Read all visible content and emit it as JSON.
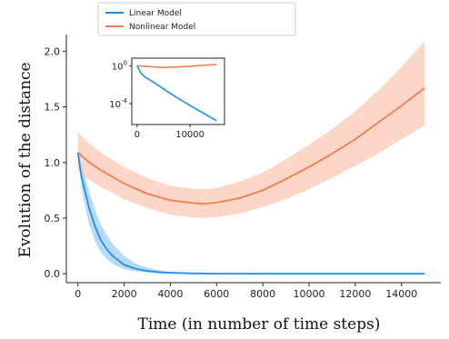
{
  "chart_data": {
    "type": "line",
    "xlabel": "Time (in number of time steps)",
    "ylabel": "Evolution of the distance",
    "xlim": [
      -500,
      15700
    ],
    "ylim": [
      -0.08,
      2.15
    ],
    "xticks": [
      "0",
      "2000",
      "4000",
      "6000",
      "8000",
      "10000",
      "12000",
      "14000"
    ],
    "xtick_values": [
      0,
      2000,
      4000,
      6000,
      8000,
      10000,
      12000,
      14000
    ],
    "yticks": [
      "0.0",
      "0.5",
      "1.0",
      "1.5",
      "2.0"
    ],
    "ytick_values": [
      0.0,
      0.5,
      1.0,
      1.5,
      2.0
    ],
    "legend_placement": "top-center",
    "grid": false,
    "series": [
      {
        "name": "Linear Model",
        "color": "#1f8ef1",
        "band_color": "#9fcdf5",
        "x": [
          0,
          150,
          300,
          500,
          750,
          1000,
          1250,
          1500,
          2000,
          2500,
          3000,
          3500,
          4000,
          5000,
          6000,
          8000,
          10000,
          12000,
          15000
        ],
        "y": [
          1.09,
          0.88,
          0.75,
          0.58,
          0.42,
          0.3,
          0.22,
          0.16,
          0.08,
          0.045,
          0.025,
          0.014,
          0.008,
          0.003,
          0.001,
          0.0003,
          0.0001,
          5e-05,
          1e-05
        ],
        "lower": [
          1.06,
          0.78,
          0.62,
          0.43,
          0.29,
          0.19,
          0.13,
          0.09,
          0.04,
          0.02,
          0.01,
          0.005,
          0.002,
          0.0005,
          0.0002,
          0.0001,
          3e-05,
          1e-05,
          3e-06
        ],
        "upper": [
          1.12,
          0.99,
          0.89,
          0.73,
          0.57,
          0.44,
          0.35,
          0.27,
          0.16,
          0.09,
          0.055,
          0.032,
          0.018,
          0.006,
          0.002,
          0.0006,
          0.0002,
          0.0001,
          2e-05
        ]
      },
      {
        "name": "Nonlinear Model",
        "color": "#f47c4c",
        "band_color": "#fbc9b5",
        "x": [
          0,
          100,
          500,
          1000,
          2000,
          3000,
          4000,
          5000,
          5500,
          6000,
          7000,
          8000,
          9000,
          10000,
          11000,
          12000,
          13000,
          14000,
          15000
        ],
        "y": [
          1.09,
          1.07,
          1.0,
          0.93,
          0.81,
          0.72,
          0.66,
          0.635,
          0.63,
          0.64,
          0.68,
          0.75,
          0.85,
          0.96,
          1.08,
          1.21,
          1.36,
          1.51,
          1.67
        ],
        "lower": [
          0.93,
          0.91,
          0.84,
          0.78,
          0.67,
          0.59,
          0.53,
          0.505,
          0.5,
          0.51,
          0.54,
          0.6,
          0.67,
          0.76,
          0.86,
          0.97,
          1.08,
          1.21,
          1.33
        ],
        "upper": [
          1.28,
          1.25,
          1.17,
          1.09,
          0.96,
          0.86,
          0.79,
          0.765,
          0.76,
          0.77,
          0.83,
          0.91,
          1.03,
          1.16,
          1.3,
          1.46,
          1.65,
          1.86,
          2.09
        ]
      }
    ],
    "inset": {
      "yscale": "log",
      "xlim": [
        -1000,
        16500
      ],
      "ylim_exp": [
        -6.2,
        0.8
      ],
      "xticks": [
        "0",
        "10000"
      ],
      "xtick_values": [
        0,
        10000
      ],
      "yticks": [
        "10^0",
        "10^-4"
      ],
      "ytick_exps": [
        0,
        -4
      ],
      "series": [
        {
          "name": "Linear Model",
          "color": "#1f8ef1",
          "x": [
            0,
            300,
            700,
            1500,
            3000,
            5000,
            7500,
            10000,
            12500,
            15000
          ],
          "y_exp": [
            0,
            -0.3,
            -0.75,
            -1.2,
            -1.7,
            -2.45,
            -3.35,
            -4.2,
            -5.0,
            -5.8
          ]
        },
        {
          "name": "Nonlinear Model",
          "color": "#f47c4c",
          "x": [
            0,
            1000,
            3000,
            5000,
            6000,
            8000,
            10000,
            12000,
            15000
          ],
          "y_exp": [
            0,
            -0.03,
            -0.12,
            -0.18,
            -0.17,
            -0.12,
            -0.05,
            0.03,
            0.13
          ]
        }
      ]
    }
  }
}
